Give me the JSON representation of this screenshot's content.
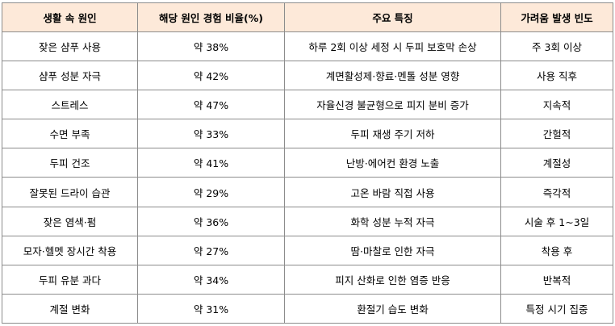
{
  "table": {
    "headers": [
      "생활 속 원인",
      "해당 원인 경험 비율(%)",
      "주요 특징",
      "가려움 발생 빈도"
    ],
    "rows": [
      [
        "잦은 샴푸 사용",
        "약 38%",
        "하루 2회 이상 세정 시 두피 보호막 손상",
        "주 3회 이상"
      ],
      [
        "샴푸 성분 자극",
        "약 42%",
        "계면활성제·향료·멘톨 성분 영향",
        "사용 직후"
      ],
      [
        "스트레스",
        "약 47%",
        "자율신경 불균형으로 피지 분비 증가",
        "지속적"
      ],
      [
        "수면 부족",
        "약 33%",
        "두피 재생 주기 저하",
        "간헐적"
      ],
      [
        "두피 건조",
        "약 41%",
        "난방·에어컨 환경 노출",
        "계절성"
      ],
      [
        "잘못된 드라이 습관",
        "약 29%",
        "고온 바람 직접 사용",
        "즉각적"
      ],
      [
        "잦은 염색·펌",
        "약 36%",
        "화학 성분 누적 자극",
        "시술 후 1~3일"
      ],
      [
        "모자·헬멧 장시간 착용",
        "약 27%",
        "땀·마찰로 인한 자극",
        "착용 후"
      ],
      [
        "두피 유분 과다",
        "약 34%",
        "피지 산화로 인한 염증 반응",
        "반복적"
      ],
      [
        "계절 변화",
        "약 31%",
        "환절기 습도 변화",
        "특정 시기 집중"
      ]
    ]
  },
  "colors": {
    "header_background": "#fde9d9",
    "border": "#8c8c8c"
  }
}
